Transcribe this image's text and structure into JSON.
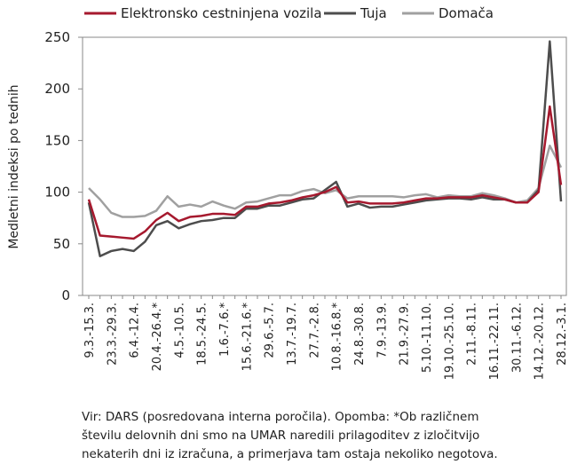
{
  "chart_data": {
    "type": "line",
    "y_label": "Medletni indeksi po tednih",
    "categories": [
      "9.3.-15.3.",
      null,
      "23.3.-29.3.",
      null,
      "6.4.-12.4.",
      null,
      "20.4.-26.4.*",
      null,
      "4.5.-10.5.",
      null,
      "18.5.-24.5.",
      null,
      "1.6.-7.6.*",
      null,
      "15.6.-21.6.*",
      null,
      "29.6.-5.7.",
      null,
      "13.7.-19.7.",
      null,
      "27.7.-2.8.",
      null,
      "10.8.-16.8.*",
      null,
      "24.8.-30.8.",
      null,
      "7.9.-13.9.",
      null,
      "21.9.-27.9.",
      null,
      "5.10.-11.10.",
      null,
      "19.10.-25.10.",
      null,
      "2.11.-8.11.",
      null,
      "16.11.-22.11.",
      null,
      "30.11.-6.12.",
      null,
      "14.12.-20.12.",
      null,
      "28.12.-3.1."
    ],
    "series": [
      {
        "name": "Elektronsko cestninjena vozila",
        "color": "#a6192e",
        "values": [
          93,
          58,
          57,
          56,
          55,
          62,
          73,
          80,
          72,
          76,
          77,
          79,
          79,
          78,
          86,
          86,
          89,
          90,
          92,
          95,
          97,
          100,
          105,
          90,
          91,
          89,
          89,
          89,
          90,
          92,
          94,
          94,
          95,
          95,
          95,
          97,
          95,
          93,
          90,
          90,
          100,
          183,
          107
        ]
      },
      {
        "name": "Tuja",
        "color": "#4d4d4d",
        "values": [
          90,
          38,
          43,
          45,
          43,
          52,
          68,
          72,
          65,
          69,
          72,
          73,
          75,
          75,
          84,
          84,
          87,
          87,
          90,
          93,
          94,
          102,
          110,
          86,
          89,
          85,
          86,
          86,
          88,
          90,
          92,
          93,
          94,
          94,
          93,
          95,
          93,
          93,
          90,
          90,
          102,
          246,
          91
        ]
      },
      {
        "name": "Domača",
        "color": "#a0a0a0",
        "values": [
          104,
          93,
          80,
          76,
          76,
          77,
          82,
          96,
          86,
          88,
          86,
          91,
          87,
          84,
          90,
          91,
          94,
          97,
          97,
          101,
          103,
          99,
          102,
          94,
          96,
          96,
          96,
          96,
          95,
          97,
          98,
          95,
          97,
          96,
          96,
          99,
          97,
          94,
          90,
          92,
          104,
          145,
          124
        ]
      }
    ],
    "ylim": [
      0,
      250
    ],
    "yticks": [
      0,
      50,
      100,
      150,
      200,
      250
    ],
    "legend": "top",
    "footnote": [
      "Vir: DARS (posredovana interna poročila). Opomba: *Ob različnem",
      "številu delovnih dni smo na UMAR naredili prilagoditev z izločitvijo",
      "nekaterih dni iz izračuna, a primerjava tam ostaja nekoliko negotova."
    ]
  }
}
